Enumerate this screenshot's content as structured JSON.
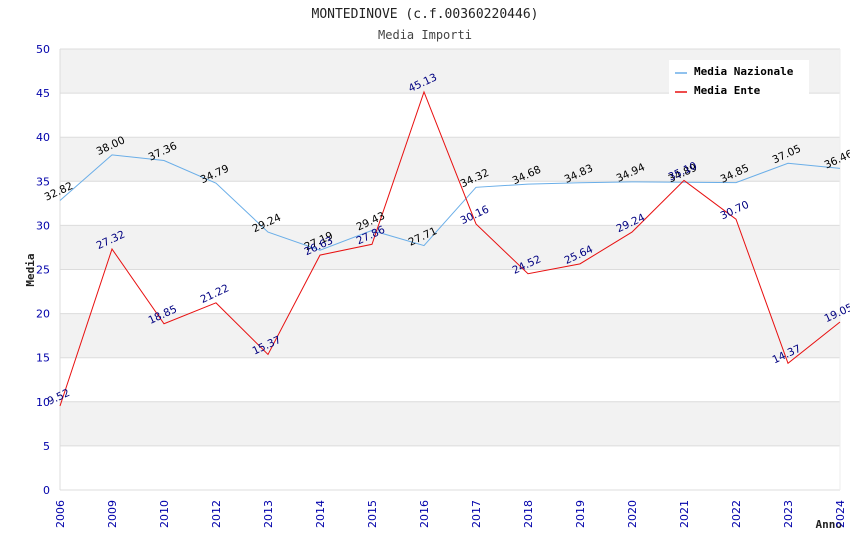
{
  "chart_data": {
    "type": "line",
    "title": "MONTEDINOVE (c.f.00360220446)",
    "subtitle": "Media Importi",
    "xlabel": "Anno",
    "ylabel": "Media",
    "ylim": [
      0,
      50
    ],
    "yticks": [
      "0",
      "5",
      "10",
      "15",
      "20",
      "25",
      "30",
      "35",
      "40",
      "45",
      "50"
    ],
    "categories": [
      "2006",
      "2009",
      "2010",
      "2012",
      "2013",
      "2014",
      "2015",
      "2016",
      "2017",
      "2018",
      "2019",
      "2020",
      "2021",
      "2022",
      "2023",
      "2024"
    ],
    "legend_position": "top-right",
    "series": [
      {
        "name": "Media Nazionale",
        "color": "#6aaee8",
        "label_color": "#000000",
        "values": [
          32.82,
          38.0,
          37.36,
          34.79,
          29.24,
          27.19,
          29.43,
          27.71,
          34.32,
          34.68,
          34.83,
          34.94,
          34.89,
          34.85,
          37.05,
          36.46
        ],
        "labels": [
          "32.82",
          "38.00",
          "37.36",
          "34.79",
          "29.24",
          "27.19",
          "29.43",
          "27.71",
          "34.32",
          "34.68",
          "34.83",
          "34.94",
          "34.89",
          "34.85",
          "37.05",
          "36.46"
        ]
      },
      {
        "name": "Media Ente",
        "color": "#e81010",
        "label_color": "#000080",
        "values": [
          9.52,
          27.32,
          18.85,
          21.22,
          15.37,
          26.63,
          27.86,
          45.13,
          30.16,
          24.52,
          25.64,
          29.24,
          35.1,
          30.7,
          14.37,
          19.05
        ],
        "labels": [
          "9.52",
          "27.32",
          "18.85",
          "21.22",
          "15.37",
          "26.63",
          "27.86",
          "45.13",
          "30.16",
          "24.52",
          "25.64",
          "29.24",
          "35.10",
          "30.70",
          "14.37",
          "19.05"
        ]
      }
    ]
  }
}
